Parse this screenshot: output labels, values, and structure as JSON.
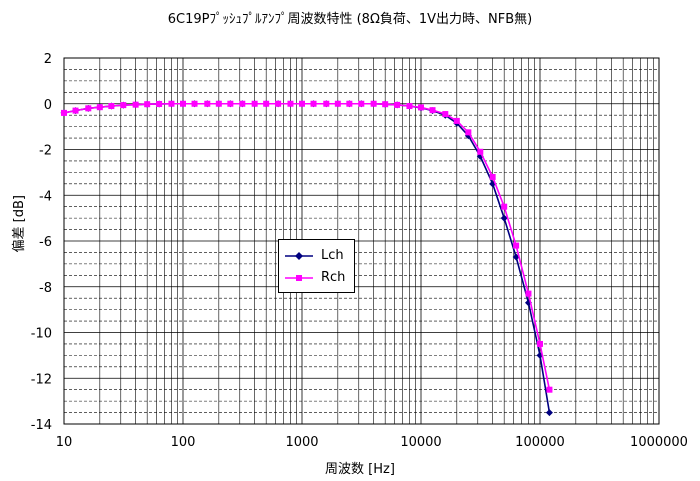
{
  "chart_data": {
    "type": "line",
    "title": "6C19Pﾌﾟｯｼｭﾌﾟﾙｱﾝﾌﾟ周波数特性 (8Ω負荷、1V出力時、NFB無)",
    "xlabel": "周波数 [Hz]",
    "ylabel": "偏差 [dB]",
    "x_scale": "log",
    "xlim": [
      10,
      1000000
    ],
    "ylim": [
      -14,
      2
    ],
    "x_ticks": [
      "10",
      "100",
      "1000",
      "10000",
      "100000",
      "1000000"
    ],
    "y_ticks": [
      "2",
      "0",
      "-2",
      "-4",
      "-6",
      "-8",
      "-10",
      "-12",
      "-14"
    ],
    "grid": true,
    "legend_position": "center-left",
    "series": [
      {
        "name": "Lch",
        "color": "#000080",
        "marker": "diamond",
        "points": [
          [
            10,
            -0.4
          ],
          [
            12.5,
            -0.3
          ],
          [
            16,
            -0.2
          ],
          [
            20,
            -0.15
          ],
          [
            25,
            -0.1
          ],
          [
            31.5,
            -0.06
          ],
          [
            40,
            -0.04
          ],
          [
            50,
            -0.02
          ],
          [
            63,
            -0.01
          ],
          [
            80,
            0
          ],
          [
            100,
            0
          ],
          [
            125,
            0
          ],
          [
            160,
            0
          ],
          [
            200,
            0
          ],
          [
            250,
            0
          ],
          [
            315,
            0
          ],
          [
            400,
            0
          ],
          [
            500,
            0
          ],
          [
            630,
            0
          ],
          [
            800,
            0
          ],
          [
            1000,
            0
          ],
          [
            1250,
            0
          ],
          [
            1600,
            0
          ],
          [
            2000,
            0
          ],
          [
            2500,
            0
          ],
          [
            3150,
            0
          ],
          [
            4000,
            0
          ],
          [
            5000,
            -0.02
          ],
          [
            6300,
            -0.05
          ],
          [
            8000,
            -0.1
          ],
          [
            10000,
            -0.18
          ],
          [
            12500,
            -0.3
          ],
          [
            16000,
            -0.5
          ],
          [
            20000,
            -0.85
          ],
          [
            25000,
            -1.4
          ],
          [
            31500,
            -2.3
          ],
          [
            40000,
            -3.5
          ],
          [
            50000,
            -5.0
          ],
          [
            63000,
            -6.7
          ],
          [
            80000,
            -8.7
          ],
          [
            100000,
            -11.0
          ],
          [
            120000,
            -13.5
          ]
        ]
      },
      {
        "name": "Rch",
        "color": "#ff00ff",
        "marker": "square",
        "points": [
          [
            10,
            -0.4
          ],
          [
            12.5,
            -0.3
          ],
          [
            16,
            -0.2
          ],
          [
            20,
            -0.15
          ],
          [
            25,
            -0.1
          ],
          [
            31.5,
            -0.06
          ],
          [
            40,
            -0.04
          ],
          [
            50,
            -0.02
          ],
          [
            63,
            -0.01
          ],
          [
            80,
            0
          ],
          [
            100,
            0
          ],
          [
            125,
            0
          ],
          [
            160,
            0
          ],
          [
            200,
            0
          ],
          [
            250,
            0
          ],
          [
            315,
            0
          ],
          [
            400,
            0
          ],
          [
            500,
            0
          ],
          [
            630,
            0
          ],
          [
            800,
            0
          ],
          [
            1000,
            0
          ],
          [
            1250,
            0
          ],
          [
            1600,
            0
          ],
          [
            2000,
            0
          ],
          [
            2500,
            0
          ],
          [
            3150,
            0
          ],
          [
            4000,
            0
          ],
          [
            5000,
            -0.02
          ],
          [
            6300,
            -0.05
          ],
          [
            8000,
            -0.1
          ],
          [
            10000,
            -0.16
          ],
          [
            12500,
            -0.28
          ],
          [
            16000,
            -0.45
          ],
          [
            20000,
            -0.75
          ],
          [
            25000,
            -1.25
          ],
          [
            31500,
            -2.1
          ],
          [
            40000,
            -3.2
          ],
          [
            50000,
            -4.5
          ],
          [
            63000,
            -6.2
          ],
          [
            80000,
            -8.3
          ],
          [
            100000,
            -10.5
          ],
          [
            120000,
            -12.5
          ]
        ]
      }
    ]
  }
}
